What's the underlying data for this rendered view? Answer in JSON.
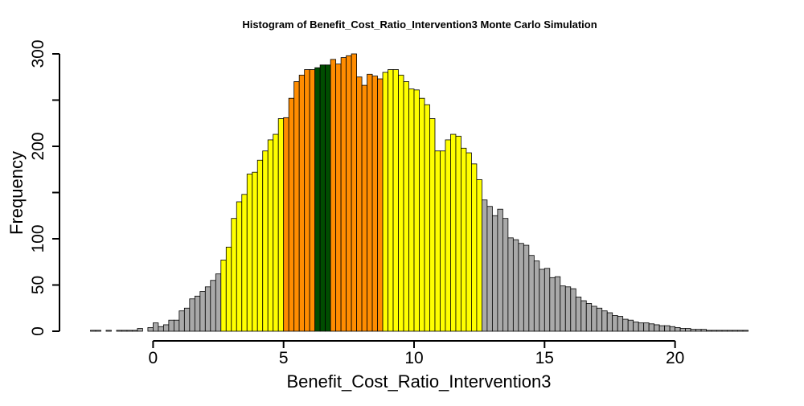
{
  "chart_data": {
    "type": "bar",
    "title": "Histogram of  Benefit_Cost_Ratio_Intervention3  Monte Carlo Simulation",
    "xlabel": "Benefit_Cost_Ratio_Intervention3",
    "ylabel": "Frequency",
    "xlim": [
      -2.6,
      23.0
    ],
    "ylim": [
      0,
      300
    ],
    "x_ticks": [
      0,
      5,
      10,
      15,
      20
    ],
    "x_tick_labels": [
      "0",
      "5",
      "10",
      "15",
      "20"
    ],
    "y_ticks": [
      0,
      50,
      100,
      150,
      200,
      250,
      300
    ],
    "y_tick_labels": [
      "0",
      "50",
      "100",
      "",
      "200",
      "",
      "300"
    ],
    "bin_width": 0.2,
    "bin_start": -2.4,
    "values": [
      1,
      1,
      0,
      1,
      0,
      1,
      1,
      1,
      1,
      3,
      0,
      4,
      9,
      5,
      7,
      12,
      12,
      22,
      25,
      35,
      38,
      43,
      48,
      55,
      62,
      77,
      91,
      122,
      140,
      148,
      170,
      172,
      185,
      195,
      207,
      213,
      230,
      231,
      252,
      270,
      277,
      283,
      283,
      285,
      288,
      288,
      294,
      289,
      296,
      298,
      300,
      275,
      266,
      278,
      276,
      273,
      280,
      283,
      283,
      277,
      270,
      262,
      261,
      252,
      245,
      230,
      195,
      195,
      207,
      213,
      211,
      198,
      193,
      181,
      164,
      142,
      135,
      125,
      132,
      122,
      101,
      99,
      95,
      93,
      82,
      76,
      67,
      68,
      58,
      59,
      49,
      48,
      46,
      37,
      33,
      30,
      27,
      25,
      22,
      20,
      17,
      16,
      13,
      12,
      10,
      9,
      9,
      8,
      7,
      6,
      6,
      5,
      4,
      3,
      3,
      2,
      2,
      2,
      1,
      1,
      1,
      1,
      1,
      1,
      1,
      1
    ],
    "color_bands": [
      {
        "range": [
          -2.6,
          2.6
        ],
        "color": "#a9a9a9"
      },
      {
        "range": [
          2.6,
          5.0
        ],
        "color": "#ffff00"
      },
      {
        "range": [
          5.0,
          6.2
        ],
        "color": "#ff8c00"
      },
      {
        "range": [
          6.2,
          6.8
        ],
        "color": "#004d00"
      },
      {
        "range": [
          6.8,
          8.8
        ],
        "color": "#ff8c00"
      },
      {
        "range": [
          8.8,
          12.6
        ],
        "color": "#ffff00"
      },
      {
        "range": [
          12.6,
          23.0
        ],
        "color": "#a9a9a9"
      }
    ],
    "bar_border_color": "#000000",
    "grid": false,
    "legend": "none"
  }
}
